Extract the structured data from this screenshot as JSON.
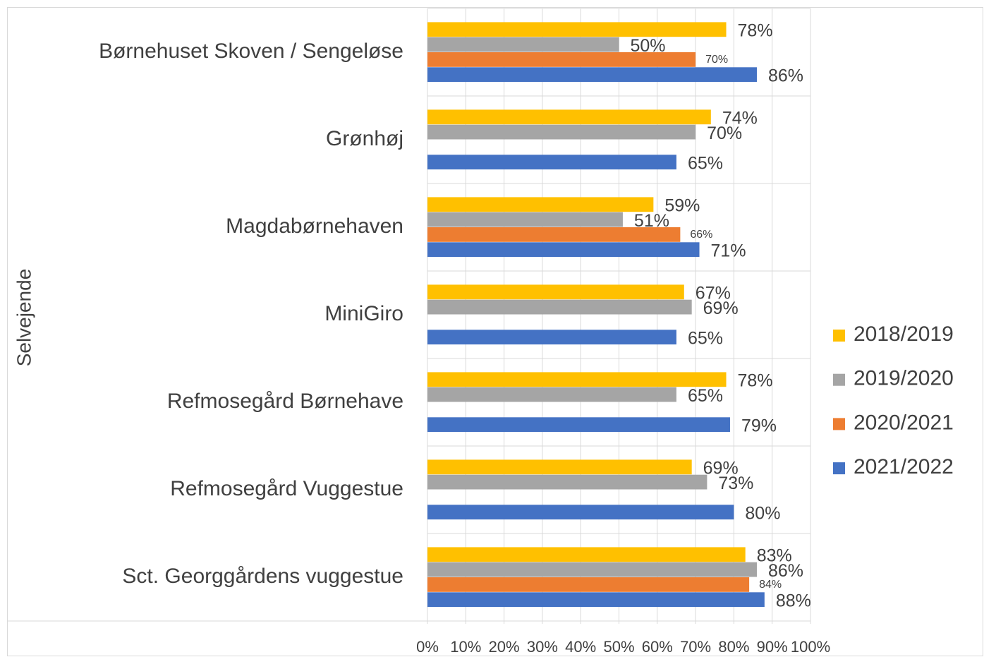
{
  "chart_data": {
    "type": "hbar",
    "y_label": "Selvejende",
    "categories": [
      "Børnehuset Skoven / Sengeløse",
      "Grønhøj",
      "Magdabørnehaven",
      "MiniGiro",
      "Refmosegård Børnehave",
      "Refmosegård Vuggestue",
      "Sct. Georggårdens vuggestue"
    ],
    "series": [
      {
        "name": "2018/2019",
        "color": "#ffc000",
        "values": [
          78,
          74,
          59,
          67,
          78,
          69,
          83
        ],
        "value_labels": [
          "78%",
          "74%",
          "59%",
          "67%",
          "78%",
          "69%",
          "83%"
        ]
      },
      {
        "name": "2019/2020",
        "color": "#a5a5a5",
        "values": [
          50,
          70,
          51,
          69,
          65,
          73,
          86
        ],
        "value_labels": [
          "50%",
          "70%",
          "51%",
          "69%",
          "65%",
          "73%",
          "86%"
        ]
      },
      {
        "name": "2020/2021",
        "color": "#ed7d31",
        "values": [
          70,
          null,
          66,
          null,
          null,
          null,
          84
        ],
        "value_labels": [
          "70%",
          null,
          "66%",
          null,
          null,
          null,
          "84%"
        ]
      },
      {
        "name": "2021/2022",
        "color": "#4472c4",
        "values": [
          86,
          65,
          71,
          65,
          79,
          80,
          88
        ],
        "value_labels": [
          "86%",
          "65%",
          "71%",
          "65%",
          "79%",
          "80%",
          "88%"
        ]
      }
    ],
    "xlim": [
      0,
      100
    ],
    "xticks": [
      {
        "value": 0,
        "label": "0%"
      },
      {
        "value": 10,
        "label": "10%"
      },
      {
        "value": 20,
        "label": "20%"
      },
      {
        "value": 30,
        "label": "30%"
      },
      {
        "value": 40,
        "label": "40%"
      },
      {
        "value": 50,
        "label": "50%"
      },
      {
        "value": 60,
        "label": "60%"
      },
      {
        "value": 70,
        "label": "70%"
      },
      {
        "value": 80,
        "label": "80%"
      },
      {
        "value": 90,
        "label": "90%"
      },
      {
        "value": 100,
        "label": "100%"
      }
    ],
    "grid": true,
    "legend": "right"
  }
}
